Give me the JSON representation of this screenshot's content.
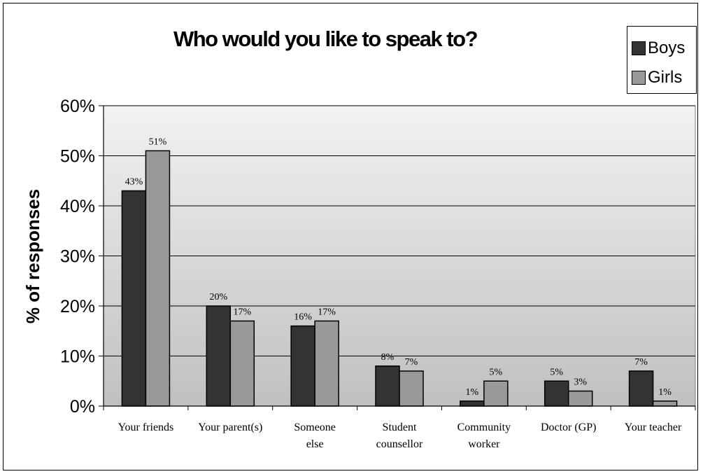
{
  "chart_data": {
    "type": "bar",
    "title": "Who would you like to speak to?",
    "xlabel": "",
    "ylabel": "% of responses",
    "ylim": [
      0,
      60
    ],
    "yticks": [
      "0%",
      "10%",
      "20%",
      "30%",
      "40%",
      "50%",
      "60%"
    ],
    "categories": [
      [
        "Your friends"
      ],
      [
        "Your parent(s)"
      ],
      [
        "Someone",
        "else"
      ],
      [
        "Student",
        "counsellor"
      ],
      [
        "Community",
        "worker"
      ],
      [
        "Doctor (GP)"
      ],
      [
        "Your teacher"
      ]
    ],
    "series": [
      {
        "name": "Boys",
        "color": "#333333",
        "values": [
          43,
          20,
          16,
          8,
          1,
          5,
          7
        ],
        "labels": [
          "43%",
          "20%",
          "16%",
          "8%",
          "1%",
          "5%",
          "7%"
        ]
      },
      {
        "name": "Girls",
        "color": "#999999",
        "values": [
          51,
          17,
          17,
          7,
          5,
          3,
          1
        ],
        "labels": [
          "51%",
          "17%",
          "17%",
          "7%",
          "5%",
          "3%",
          "1%"
        ]
      }
    ],
    "legend_position": "top-right",
    "grid": true
  }
}
